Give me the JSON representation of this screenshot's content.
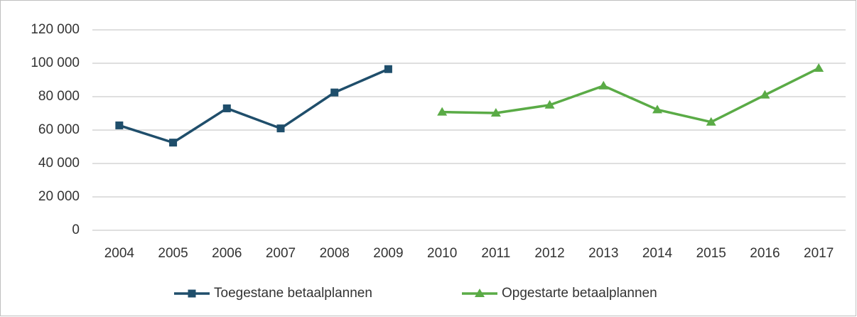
{
  "chart_data": {
    "type": "line",
    "categories": [
      "2004",
      "2005",
      "2006",
      "2007",
      "2008",
      "2009",
      "2010",
      "2011",
      "2012",
      "2013",
      "2014",
      "2015",
      "2016",
      "2017"
    ],
    "series": [
      {
        "name": "Toegestane betaalplannen",
        "color": "#1f4e6b",
        "marker": "square",
        "values": [
          62800,
          52500,
          73000,
          61000,
          82500,
          96500,
          null,
          null,
          null,
          null,
          null,
          null,
          null,
          null
        ]
      },
      {
        "name": "Opgestarte betaalplannen",
        "color": "#5aab46",
        "marker": "triangle",
        "values": [
          null,
          null,
          null,
          null,
          null,
          null,
          70800,
          70200,
          75000,
          86500,
          72200,
          64800,
          81000,
          97000
        ]
      }
    ],
    "ylim": [
      0,
      120000
    ],
    "yticks": [
      0,
      {
        "value": 20000,
        "label": "20 000"
      },
      {
        "value": 40000,
        "label": "40 000"
      },
      {
        "value": 60000,
        "label": "60 000"
      },
      {
        "value": 80000,
        "label": "80 000"
      },
      {
        "value": 100000,
        "label": "100 000"
      },
      {
        "value": 120000,
        "label": "120 000"
      }
    ],
    "grid": true,
    "legend": "bottom"
  }
}
